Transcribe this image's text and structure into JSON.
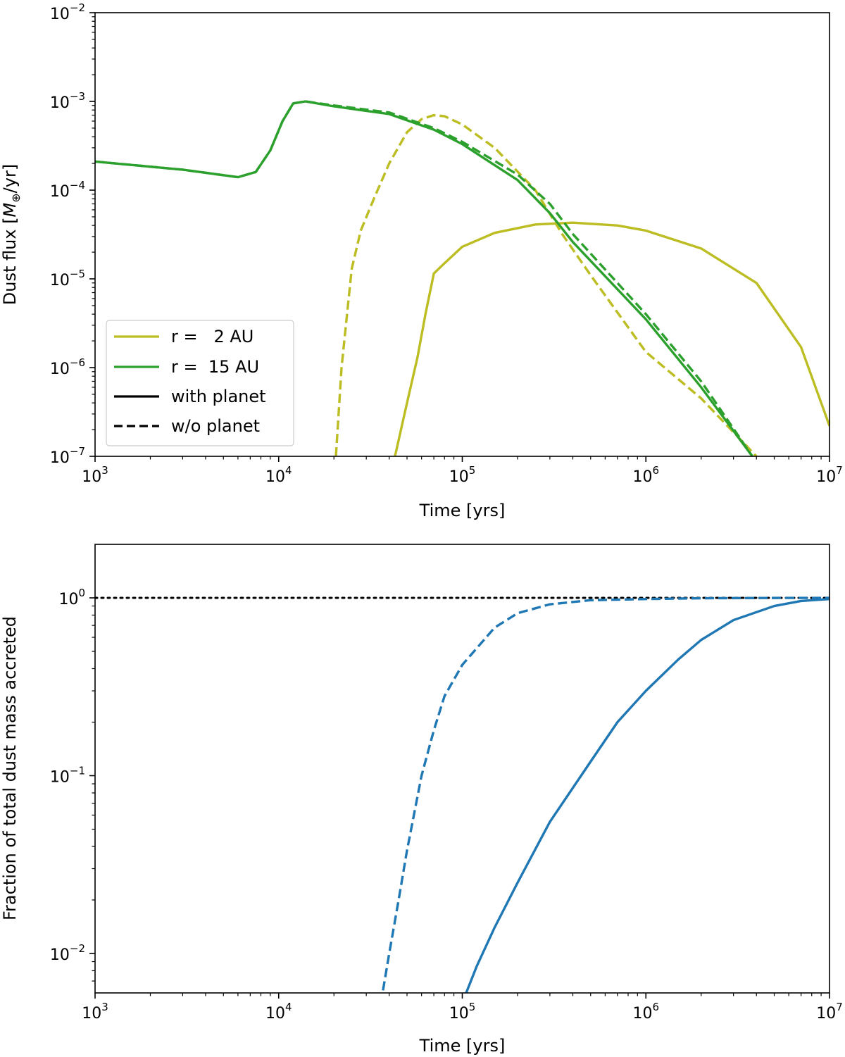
{
  "colors": {
    "r2": "#bcbd22",
    "r15": "#2ca02c",
    "blue": "#1f77b4",
    "black": "#000000"
  },
  "chart_data": [
    {
      "type": "line",
      "xscale": "log",
      "yscale": "log",
      "xlabel": "Time [yrs]",
      "ylabel_prefix": "Dust flux [",
      "ylabel_math": "M",
      "ylabel_sub": "⊕",
      "ylabel_suffix": "/yr]",
      "xlim": [
        1000,
        10000000
      ],
      "ylim": [
        1e-07,
        0.01
      ],
      "xticks": [
        {
          "value": 1000,
          "base": "10",
          "exp": "3"
        },
        {
          "value": 10000,
          "base": "10",
          "exp": "4"
        },
        {
          "value": 100000,
          "base": "10",
          "exp": "5"
        },
        {
          "value": 1000000,
          "base": "10",
          "exp": "6"
        },
        {
          "value": 10000000,
          "base": "10",
          "exp": "7"
        }
      ],
      "yticks": [
        {
          "value": 1e-07,
          "base": "10",
          "exp": "−7"
        },
        {
          "value": 1e-06,
          "base": "10",
          "exp": "−6"
        },
        {
          "value": 1e-05,
          "base": "10",
          "exp": "−5"
        },
        {
          "value": 0.0001,
          "base": "10",
          "exp": "−4"
        },
        {
          "value": 0.001,
          "base": "10",
          "exp": "−3"
        },
        {
          "value": 0.01,
          "base": "10",
          "exp": "−2"
        }
      ],
      "legend": {
        "position": "lower left",
        "entries": [
          {
            "label": "r =   2 AU",
            "color": "#bcbd22",
            "style": "solid"
          },
          {
            "label": "r =  15 AU",
            "color": "#2ca02c",
            "style": "solid"
          },
          {
            "label": "with planet",
            "color": "#000000",
            "style": "solid"
          },
          {
            "label": "w/o planet",
            "color": "#000000",
            "style": "dashed"
          }
        ]
      },
      "series": [
        {
          "name": "r = 2 AU, w/o planet",
          "color": "#bcbd22",
          "style": "dashed",
          "x": [
            20500,
            22000,
            25000,
            28000,
            33000,
            40000,
            50000,
            60000,
            70000,
            80000,
            100000,
            150000,
            250000,
            350000,
            500000,
            1000000,
            2000000,
            4000000
          ],
          "y": [
            1e-07,
            1e-06,
            1.3e-05,
            3.5e-05,
            8e-05,
            0.0002,
            0.00045,
            0.00063,
            0.0007,
            0.00068,
            0.00055,
            0.0003,
            0.0001,
            3.2e-05,
            1.1e-05,
            1.5e-06,
            4.5e-07,
            1e-07
          ]
        },
        {
          "name": "r = 2 AU, with planet",
          "color": "#bcbd22",
          "style": "solid",
          "x": [
            43000,
            50000,
            57000,
            63000,
            70000,
            80000,
            100000,
            150000,
            250000,
            400000,
            700000,
            1000000,
            2000000,
            4000000,
            7000000,
            10000000
          ],
          "y": [
            1e-07,
            4e-07,
            1.3e-06,
            4e-06,
            1.15e-05,
            1.5e-05,
            2.3e-05,
            3.3e-05,
            4.1e-05,
            4.3e-05,
            4e-05,
            3.5e-05,
            2.2e-05,
            9e-06,
            1.7e-06,
            2.2e-07
          ]
        },
        {
          "name": "r = 15 AU, w/o planet",
          "color": "#2ca02c",
          "style": "dashed",
          "x": [
            1000,
            3000,
            6000,
            7500,
            9000,
            10500,
            12000,
            14000,
            20000,
            40000,
            70000,
            100000,
            200000,
            300000,
            400000,
            1000000,
            2000000,
            3800000
          ],
          "y": [
            0.00021,
            0.00017,
            0.00014,
            0.00016,
            0.00028,
            0.0006,
            0.00095,
            0.001,
            0.0009,
            0.00075,
            0.0005,
            0.00035,
            0.00015,
            7e-05,
            3.2e-05,
            4e-06,
            7e-07,
            1e-07
          ]
        },
        {
          "name": "r = 15 AU, with planet",
          "color": "#2ca02c",
          "style": "solid",
          "x": [
            1000,
            3000,
            6000,
            7500,
            9000,
            10500,
            12000,
            14000,
            20000,
            40000,
            70000,
            100000,
            200000,
            300000,
            400000,
            1000000,
            2000000,
            3800000
          ],
          "y": [
            0.00021,
            0.00017,
            0.00014,
            0.00016,
            0.00028,
            0.0006,
            0.00095,
            0.001,
            0.00088,
            0.00072,
            0.00048,
            0.00033,
            0.00013,
            5.5e-05,
            2.6e-05,
            3.5e-06,
            6e-07,
            1e-07
          ]
        }
      ]
    },
    {
      "type": "line",
      "xscale": "log",
      "yscale": "log",
      "xlabel": "Time [yrs]",
      "ylabel": "Fraction of total dust mass accreted",
      "xlim": [
        1000,
        10000000
      ],
      "ylim": [
        0.006,
        2.0
      ],
      "xticks": [
        {
          "value": 1000,
          "base": "10",
          "exp": "3"
        },
        {
          "value": 10000,
          "base": "10",
          "exp": "4"
        },
        {
          "value": 100000,
          "base": "10",
          "exp": "5"
        },
        {
          "value": 1000000,
          "base": "10",
          "exp": "6"
        },
        {
          "value": 10000000,
          "base": "10",
          "exp": "7"
        }
      ],
      "yticks": [
        {
          "value": 0.01,
          "base": "10",
          "exp": "−2"
        },
        {
          "value": 0.1,
          "base": "10",
          "exp": "−1"
        },
        {
          "value": 1,
          "base": "10",
          "exp": "0"
        }
      ],
      "reference_line": {
        "y": 1,
        "style": "dotted",
        "color": "#000000"
      },
      "series": [
        {
          "name": "w/o planet",
          "color": "#1f77b4",
          "style": "dashed",
          "x": [
            37000,
            40000,
            45000,
            50000,
            60000,
            70000,
            80000,
            100000,
            150000,
            200000,
            300000,
            500000,
            1000000,
            2000000,
            5000000,
            10000000
          ],
          "y": [
            0.0062,
            0.01,
            0.02,
            0.038,
            0.1,
            0.18,
            0.28,
            0.42,
            0.68,
            0.82,
            0.92,
            0.97,
            0.985,
            0.995,
            0.999,
            1.0
          ]
        },
        {
          "name": "with planet",
          "color": "#1f77b4",
          "style": "solid",
          "x": [
            105000,
            120000,
            150000,
            200000,
            300000,
            500000,
            700000,
            1000000,
            1500000,
            2000000,
            3000000,
            5000000,
            7000000,
            10000000
          ],
          "y": [
            0.006,
            0.0085,
            0.014,
            0.025,
            0.055,
            0.12,
            0.2,
            0.3,
            0.45,
            0.58,
            0.75,
            0.9,
            0.96,
            0.985
          ]
        }
      ]
    }
  ]
}
